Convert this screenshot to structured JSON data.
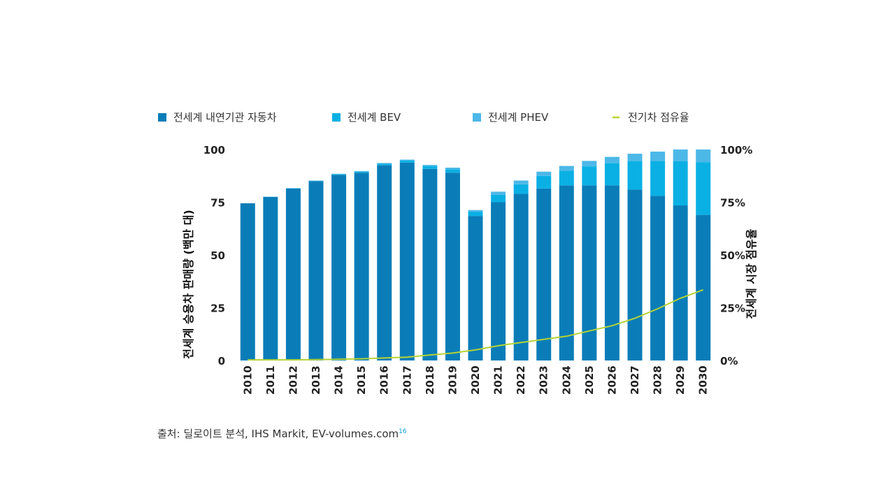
{
  "chart_data": {
    "type": "bar",
    "stacked": true,
    "title": "",
    "categories": [
      "2010",
      "2011",
      "2012",
      "2013",
      "2014",
      "2015",
      "2016",
      "2017",
      "2018",
      "2019",
      "2020",
      "2021",
      "2022",
      "2023",
      "2024",
      "2025",
      "2026",
      "2027",
      "2028",
      "2029",
      "2030"
    ],
    "series": [
      {
        "name": "전세계 내연기관 자동차",
        "color": "#0a7db8",
        "values": [
          74.5,
          77.5,
          81.5,
          85,
          88,
          89,
          92.5,
          93.8,
          90.8,
          89,
          68.5,
          75,
          79,
          81.5,
          83,
          83,
          83,
          81,
          78,
          73.5,
          69
        ]
      },
      {
        "name": "전세계 BEV",
        "color": "#0ab0e4",
        "values": [
          0.0,
          0.1,
          0.1,
          0.2,
          0.3,
          0.5,
          0.7,
          0.9,
          1.3,
          1.6,
          2.0,
          3.5,
          4.5,
          6.0,
          7.0,
          9.0,
          10.5,
          13.5,
          16.5,
          21.0,
          25.0
        ]
      },
      {
        "name": "전세계 PHEV",
        "color": "#4cb8e8",
        "values": [
          0.0,
          0.0,
          0.1,
          0.1,
          0.2,
          0.3,
          0.4,
          0.5,
          0.6,
          0.8,
          0.8,
          1.5,
          1.8,
          2.0,
          2.2,
          2.6,
          3.0,
          3.5,
          4.5,
          5.5,
          6.0
        ]
      }
    ],
    "line_series": {
      "name": "전기차 점유율",
      "color": "#b5d334",
      "values": [
        0.3,
        0.3,
        0.3,
        0.4,
        0.6,
        0.8,
        1.2,
        1.6,
        2.6,
        3.5,
        5.0,
        7.0,
        8.5,
        10.0,
        11.5,
        14.0,
        16.5,
        20.0,
        24.5,
        29.5,
        33.5
      ]
    },
    "ylabel": "전세계 승용차 판매량 (백만 대)",
    "y2label": "전세계 시장 점유율",
    "ylim": [
      0,
      100
    ],
    "y2lim": [
      0,
      100
    ],
    "yticks": [
      "0",
      "25",
      "50",
      "75",
      "100"
    ],
    "y2ticks": [
      "0%",
      "25%",
      "50%",
      "75%",
      "100%"
    ],
    "legend_position": "top",
    "grid": false
  },
  "source": {
    "text": "출처: 딜로이트 분석, IHS Markit, EV-volumes.com",
    "footnote": "16"
  }
}
